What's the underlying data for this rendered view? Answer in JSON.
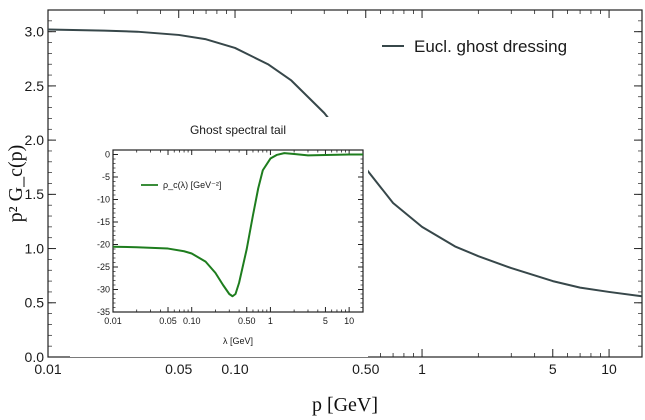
{
  "colors": {
    "main_line": "#37474a",
    "inset_line": "#1e7d1e",
    "frame": "#222222"
  },
  "chart_data": [
    {
      "type": "line",
      "xscale": "log",
      "xlim": [
        0.01,
        15
      ],
      "ylim": [
        0.0,
        3.2
      ],
      "xlabel": "p [GeV]",
      "ylabel": "p² G_c(p)",
      "xticks": [
        {
          "value": 0.01,
          "label": "0.01"
        },
        {
          "value": 0.05,
          "label": "0.05"
        },
        {
          "value": 0.1,
          "label": "0.10"
        },
        {
          "value": 0.5,
          "label": "0.50"
        },
        {
          "value": 1,
          "label": "1"
        },
        {
          "value": 5,
          "label": "5"
        },
        {
          "value": 10,
          "label": "10"
        }
      ],
      "yticks": [
        {
          "value": 0.0,
          "label": "0.0"
        },
        {
          "value": 0.5,
          "label": "0.5"
        },
        {
          "value": 1.0,
          "label": "1.0"
        },
        {
          "value": 1.5,
          "label": "1.5"
        },
        {
          "value": 2.0,
          "label": "2.0"
        },
        {
          "value": 2.5,
          "label": "2.5"
        },
        {
          "value": 3.0,
          "label": "3.0"
        }
      ],
      "legend_position": "top-right",
      "series": [
        {
          "name": "Eucl. ghost dressing",
          "x": [
            0.01,
            0.02,
            0.03,
            0.05,
            0.07,
            0.1,
            0.15,
            0.2,
            0.3,
            0.4,
            0.5,
            0.7,
            1.0,
            1.5,
            2,
            3,
            5,
            7,
            10,
            15
          ],
          "y": [
            3.02,
            3.01,
            3.0,
            2.97,
            2.93,
            2.85,
            2.7,
            2.55,
            2.25,
            1.98,
            1.74,
            1.42,
            1.2,
            1.02,
            0.93,
            0.82,
            0.7,
            0.64,
            0.6,
            0.56
          ]
        }
      ]
    },
    {
      "type": "line",
      "title": "Ghost spectral tail",
      "xscale": "log",
      "xlim": [
        0.01,
        15
      ],
      "ylim": [
        -35,
        1
      ],
      "xlabel": "λ [GeV]",
      "ylabel": "",
      "xticks": [
        {
          "value": 0.01,
          "label": "0.01"
        },
        {
          "value": 0.05,
          "label": "0.05"
        },
        {
          "value": 0.1,
          "label": "0.10"
        },
        {
          "value": 0.5,
          "label": "0.50"
        },
        {
          "value": 1,
          "label": "1"
        },
        {
          "value": 5,
          "label": "5"
        },
        {
          "value": 10,
          "label": "10"
        }
      ],
      "yticks": [
        {
          "value": 0,
          "label": "0"
        },
        {
          "value": -5,
          "label": "-5"
        },
        {
          "value": -10,
          "label": "-10"
        },
        {
          "value": -15,
          "label": "-15"
        },
        {
          "value": -20,
          "label": "-20"
        },
        {
          "value": -25,
          "label": "-25"
        },
        {
          "value": -30,
          "label": "-30"
        },
        {
          "value": -35,
          "label": "-35"
        }
      ],
      "legend_position": "top-left",
      "series": [
        {
          "name": "ρ_c(λ) [GeV⁻²]",
          "x": [
            0.01,
            0.02,
            0.05,
            0.08,
            0.1,
            0.15,
            0.2,
            0.25,
            0.3,
            0.33,
            0.36,
            0.4,
            0.5,
            0.6,
            0.7,
            0.8,
            1.0,
            1.2,
            1.5,
            2,
            3,
            5,
            10,
            15
          ],
          "y": [
            -20.5,
            -20.6,
            -20.9,
            -21.5,
            -22,
            -23.8,
            -26.3,
            -29,
            -31,
            -31.5,
            -31,
            -28.5,
            -21,
            -13.5,
            -7.5,
            -3.5,
            -0.9,
            -0.1,
            0.3,
            0.1,
            -0.2,
            -0.1,
            0,
            0
          ]
        }
      ]
    }
  ]
}
